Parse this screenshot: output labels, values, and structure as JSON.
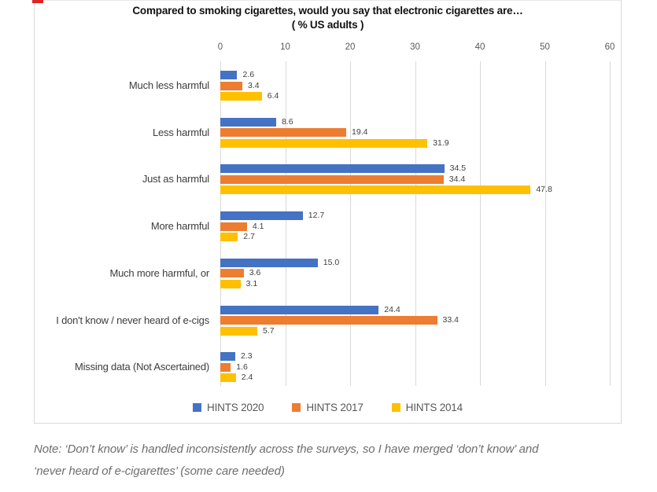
{
  "chart_data": {
    "type": "bar",
    "orientation": "horizontal",
    "title": "Compared to smoking cigarettes, would you say that electronic cigarettes are…",
    "subtitle": "( % US adults )",
    "categories": [
      "Much less harmful",
      "Less harmful",
      "Just as harmful",
      "More harmful",
      "Much more harmful, or",
      "I don't know / never heard of e-cigs",
      "Missing data (Not Ascertained)"
    ],
    "series": [
      {
        "name": "HINTS 2020",
        "color": "#4472C4",
        "values": [
          2.6,
          8.6,
          34.5,
          12.7,
          15.0,
          24.4,
          2.3
        ]
      },
      {
        "name": "HINTS 2017",
        "color": "#ED7D31",
        "values": [
          3.4,
          19.4,
          34.4,
          4.1,
          3.6,
          33.4,
          1.6
        ]
      },
      {
        "name": "HINTS 2014",
        "color": "#FFC000",
        "values": [
          6.4,
          31.9,
          47.8,
          2.7,
          3.1,
          5.7,
          2.4
        ]
      }
    ],
    "x_ticks": [
      0,
      10,
      20,
      30,
      40,
      50,
      60
    ],
    "xlim": [
      0,
      60
    ],
    "grid": true,
    "legend_position": "bottom",
    "gridline_color": "#d9d9d9",
    "value_label_decimals": 1
  },
  "note": {
    "line1": "Note: ‘Don’t know’ is handled inconsistently across the surveys, so I have merged ‘don’t know’ and",
    "line2": "‘never heard of e-cigarettes’ (some care needed)"
  },
  "decorations": {
    "red_marker_color": "#e02424"
  }
}
